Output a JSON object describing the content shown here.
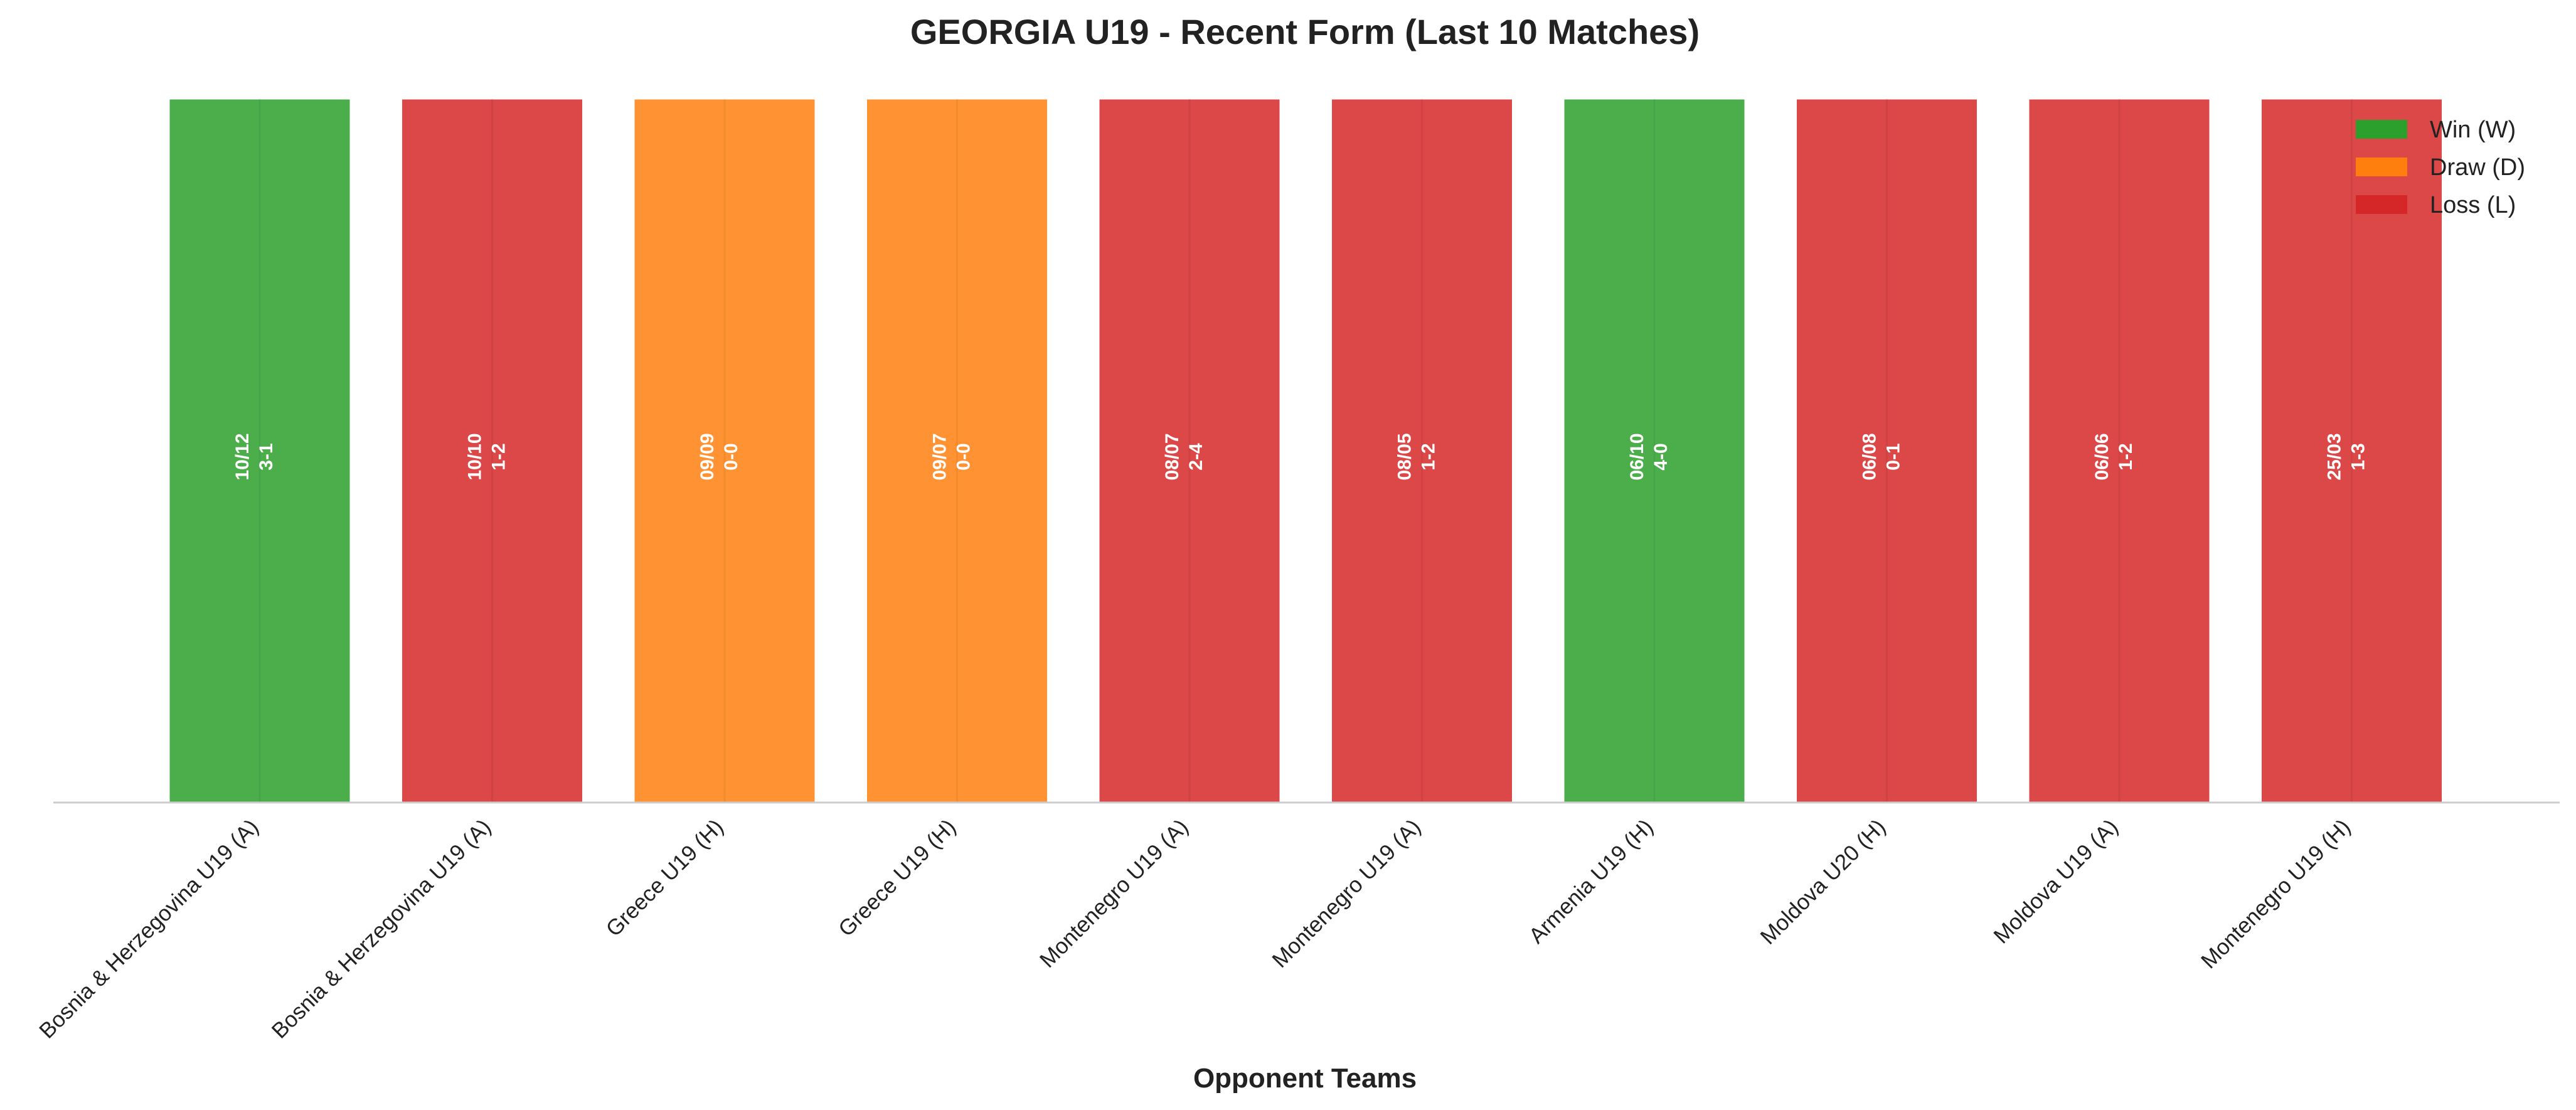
{
  "chart_data": {
    "type": "bar",
    "title": "GEORGIA U19 - Recent Form (Last 10 Matches)",
    "xlabel": "Opponent Teams",
    "ylabel": "",
    "ylim": [
      0,
      1
    ],
    "grid": false,
    "legend_position": "top-right",
    "categories": [
      "Bosnia & Herzegovina U19 (A)",
      "Bosnia & Herzegovina U19 (A)",
      "Greece U19 (H)",
      "Greece U19 (H)",
      "Montenegro U19 (A)",
      "Montenegro U19 (A)",
      "Armenia U19 (H)",
      "Moldova U20 (H)",
      "Moldova U19 (A)",
      "Montenegro U19 (H)"
    ],
    "values": [
      1,
      1,
      1,
      1,
      1,
      1,
      1,
      1,
      1,
      1
    ],
    "results": [
      "W",
      "L",
      "D",
      "D",
      "L",
      "L",
      "W",
      "L",
      "L",
      "L"
    ],
    "dates": [
      "10/12",
      "10/10",
      "09/09",
      "09/07",
      "08/07",
      "08/05",
      "06/10",
      "06/08",
      "06/06",
      "25/03"
    ],
    "scores": [
      "3-1",
      "1-2",
      "0-0",
      "0-0",
      "2-4",
      "1-2",
      "4-0",
      "0-1",
      "1-2",
      "1-3"
    ],
    "colors": {
      "W": "#2ca02c",
      "D": "#ff7f0e",
      "L": "#d62728"
    },
    "legend": [
      {
        "key": "W",
        "label": "Win (W)"
      },
      {
        "key": "D",
        "label": "Draw (D)"
      },
      {
        "key": "L",
        "label": "Loss (L)"
      }
    ]
  }
}
